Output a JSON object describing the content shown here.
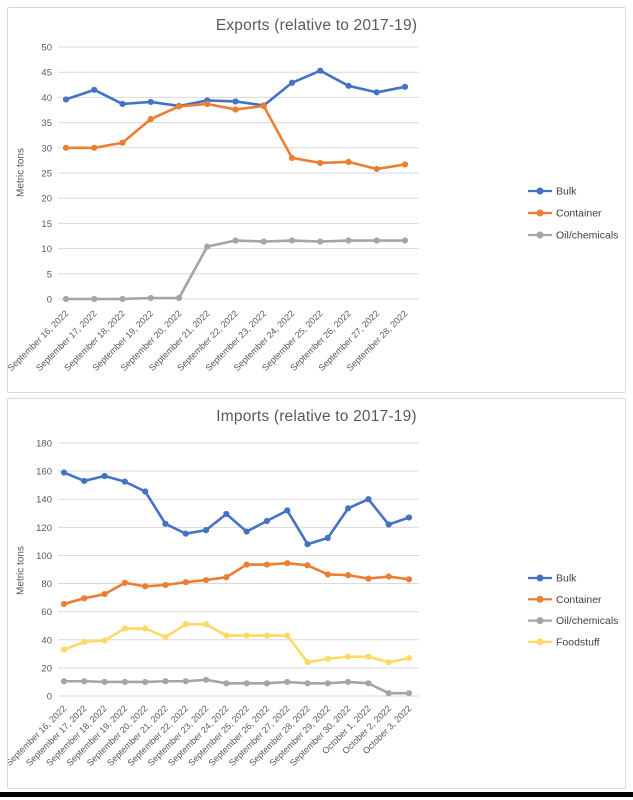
{
  "page": {
    "background": "#ffffff",
    "bottom_bar_color": "#000000"
  },
  "colors": {
    "grid": "#D9D9D9",
    "axis_text": "#595959",
    "legend_text": "#404040",
    "title_text": "#595959",
    "card_border": "#D9D9D9",
    "card_background": "#ffffff",
    "series_blue": "#4472C4",
    "series_orange": "#ED7D31",
    "series_gray": "#A5A5A5",
    "series_yellow": "#FFD966"
  },
  "chart_data": [
    {
      "type": "line",
      "title": "Exports (relative to 2017-19)",
      "xlabel": "",
      "ylabel": "Metric tons",
      "ylim": [
        0,
        50
      ],
      "ytick_step": 5,
      "grid": true,
      "legend_position": "right",
      "categories": [
        "September 16, 2022",
        "September 17, 2022",
        "September 18, 2022",
        "September 19, 2022",
        "September 20, 2022",
        "September 21, 2022",
        "September 22, 2022",
        "September 23, 2022",
        "September 24, 2022",
        "September 25, 2022",
        "September 26, 2022",
        "September 27, 2022",
        "September 28, 2022"
      ],
      "series": [
        {
          "name": "Bulk",
          "color": "#4472C4",
          "values": [
            39.6,
            41.5,
            38.7,
            39.1,
            38.3,
            39.4,
            39.2,
            38.4,
            42.9,
            45.3,
            42.3,
            41.0,
            42.1
          ]
        },
        {
          "name": "Container",
          "color": "#ED7D31",
          "values": [
            30.0,
            30.0,
            31.0,
            35.7,
            38.2,
            38.7,
            37.6,
            38.3,
            28.0,
            27.0,
            27.2,
            25.8,
            26.7
          ]
        },
        {
          "name": "Oil/chemicals",
          "color": "#A5A5A5",
          "values": [
            0.0,
            0.0,
            0.0,
            0.2,
            0.2,
            10.4,
            11.6,
            11.4,
            11.6,
            11.4,
            11.6,
            11.6,
            11.6
          ]
        }
      ]
    },
    {
      "type": "line",
      "title": "Imports (relative to 2017-19)",
      "xlabel": "",
      "ylabel": "Metric tons",
      "ylim": [
        0,
        180
      ],
      "ytick_step": 20,
      "grid": true,
      "legend_position": "right",
      "categories": [
        "September 16, 2022",
        "September 17, 2022",
        "September 18, 2022",
        "September 19, 2022",
        "September 20, 2022",
        "September 21, 2022",
        "September 22, 2022",
        "September 23, 2022",
        "September 24, 2022",
        "September 25, 2022",
        "September 26, 2022",
        "September 27, 2022",
        "September 28, 2022",
        "September 29, 2022",
        "September 30, 2022",
        "October 1, 2022",
        "October 2, 2022",
        "October 3, 2022"
      ],
      "series": [
        {
          "name": "Bulk",
          "color": "#4472C4",
          "values": [
            159,
            153,
            156.5,
            152.5,
            145.5,
            122.5,
            115.5,
            118,
            129.5,
            117,
            124.5,
            132,
            108,
            112.5,
            133.5,
            140,
            122,
            127
          ]
        },
        {
          "name": "Container",
          "color": "#ED7D31",
          "values": [
            65.5,
            69.5,
            72.5,
            80.5,
            78,
            79,
            81,
            82.5,
            84.5,
            93.5,
            93.5,
            94.5,
            93,
            86.5,
            86,
            83.5,
            85,
            83
          ]
        },
        {
          "name": "Oil/chemicals",
          "color": "#A5A5A5",
          "values": [
            10.5,
            10.5,
            10,
            10,
            10,
            10.5,
            10.5,
            11.5,
            9,
            9,
            9,
            10,
            9,
            9,
            10,
            9,
            2,
            2
          ]
        },
        {
          "name": "Foodstuff",
          "color": "#FFD966",
          "values": [
            33,
            38.5,
            39.5,
            48,
            48,
            42,
            51,
            51,
            43,
            43,
            43,
            43,
            24,
            26.5,
            28,
            28,
            24,
            27
          ]
        }
      ]
    }
  ]
}
